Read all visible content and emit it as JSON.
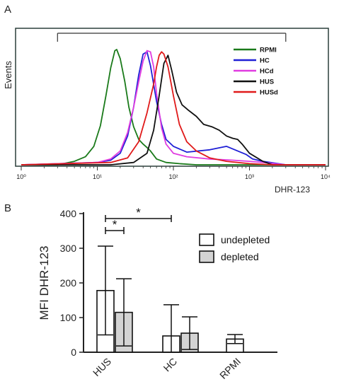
{
  "panels": {
    "a_label": "A",
    "b_label": "B"
  },
  "chart_data": [
    {
      "type": "line",
      "panel": "A",
      "xlabel": "DHR-123",
      "ylabel": "Events",
      "x_scale": "log",
      "xlim": [
        1,
        10000
      ],
      "x_tick_labels": [
        "10⁰",
        "10¹",
        "10²",
        "10³",
        "10⁴"
      ],
      "x_tick_values": [
        1,
        10,
        100,
        1000,
        10000
      ],
      "gate_range": [
        3,
        3000
      ],
      "legend_position": "top-right",
      "series": [
        {
          "name": "RPMI",
          "color": "#1a7a1a",
          "x": [
            1,
            3,
            5,
            7,
            9,
            11,
            13,
            15,
            17,
            18,
            20,
            23,
            26,
            30,
            35,
            40,
            45,
            50,
            60,
            80,
            120,
            200,
            1000,
            10000
          ],
          "y": [
            0.0,
            0.0,
            0.03,
            0.07,
            0.16,
            0.34,
            0.6,
            0.84,
            0.99,
            1.0,
            0.92,
            0.72,
            0.5,
            0.33,
            0.22,
            0.18,
            0.15,
            0.12,
            0.05,
            0.02,
            0.01,
            0.0,
            0.0,
            0.0
          ]
        },
        {
          "name": "HC",
          "color": "#1f1fd6",
          "x": [
            1,
            10,
            15,
            20,
            25,
            30,
            35,
            40,
            45,
            50,
            60,
            70,
            80,
            100,
            150,
            300,
            500,
            700,
            900,
            1100,
            1500,
            3000,
            10000
          ],
          "y": [
            0.0,
            0.02,
            0.04,
            0.1,
            0.25,
            0.5,
            0.78,
            0.96,
            0.98,
            0.86,
            0.55,
            0.35,
            0.22,
            0.16,
            0.11,
            0.13,
            0.16,
            0.12,
            0.09,
            0.05,
            0.03,
            0.0,
            0.0
          ]
        },
        {
          "name": "HCd",
          "color": "#e03ce0",
          "x": [
            1,
            10,
            15,
            20,
            25,
            30,
            35,
            40,
            45,
            50,
            55,
            60,
            70,
            80,
            100,
            150,
            300,
            600,
            1000,
            1500,
            3000,
            10000
          ],
          "y": [
            0.0,
            0.02,
            0.05,
            0.12,
            0.28,
            0.5,
            0.72,
            0.9,
            0.99,
            0.98,
            0.85,
            0.62,
            0.32,
            0.18,
            0.1,
            0.07,
            0.05,
            0.04,
            0.03,
            0.02,
            0.0,
            0.0
          ]
        },
        {
          "name": "HUS",
          "color": "#111111",
          "x": [
            1,
            15,
            30,
            45,
            55,
            65,
            75,
            85,
            95,
            110,
            130,
            160,
            200,
            250,
            320,
            400,
            500,
            600,
            700,
            800,
            1000,
            1500,
            2000,
            10000
          ],
          "y": [
            0.0,
            0.0,
            0.02,
            0.1,
            0.3,
            0.6,
            0.88,
            0.95,
            0.82,
            0.63,
            0.52,
            0.47,
            0.42,
            0.35,
            0.33,
            0.3,
            0.25,
            0.23,
            0.22,
            0.18,
            0.1,
            0.03,
            0.0,
            0.0
          ]
        },
        {
          "name": "HUSd",
          "color": "#e01a1a",
          "x": [
            1,
            15,
            25,
            35,
            45,
            55,
            60,
            65,
            70,
            75,
            85,
            100,
            120,
            150,
            200,
            300,
            500,
            1000,
            2000,
            10000
          ],
          "y": [
            0.0,
            0.02,
            0.06,
            0.2,
            0.45,
            0.7,
            0.85,
            0.95,
            0.98,
            0.96,
            0.85,
            0.6,
            0.35,
            0.2,
            0.12,
            0.06,
            0.03,
            0.01,
            0.0,
            0.0
          ]
        }
      ]
    },
    {
      "type": "bar",
      "panel": "B",
      "ylabel": "MFI DHR-123",
      "ylim": [
        0,
        400
      ],
      "y_ticks": [
        "0",
        "100",
        "200",
        "300",
        "400"
      ],
      "categories": [
        "HUS",
        "HC",
        "RPMI"
      ],
      "legend_position": "top-right",
      "series": [
        {
          "name": "undepleted",
          "color": "#ffffff",
          "values": [
            178,
            47,
            38
          ],
          "error": [
            128,
            90,
            13
          ]
        },
        {
          "name": "depleted",
          "color": "#d3d3d3",
          "values": [
            115,
            55,
            null
          ],
          "error": [
            97,
            47,
            null
          ]
        }
      ],
      "significance": [
        {
          "label": "*",
          "between": "HUS undepleted vs HUS depleted"
        },
        {
          "label": "*",
          "between": "HUS undepleted vs HC undepleted"
        }
      ]
    }
  ]
}
